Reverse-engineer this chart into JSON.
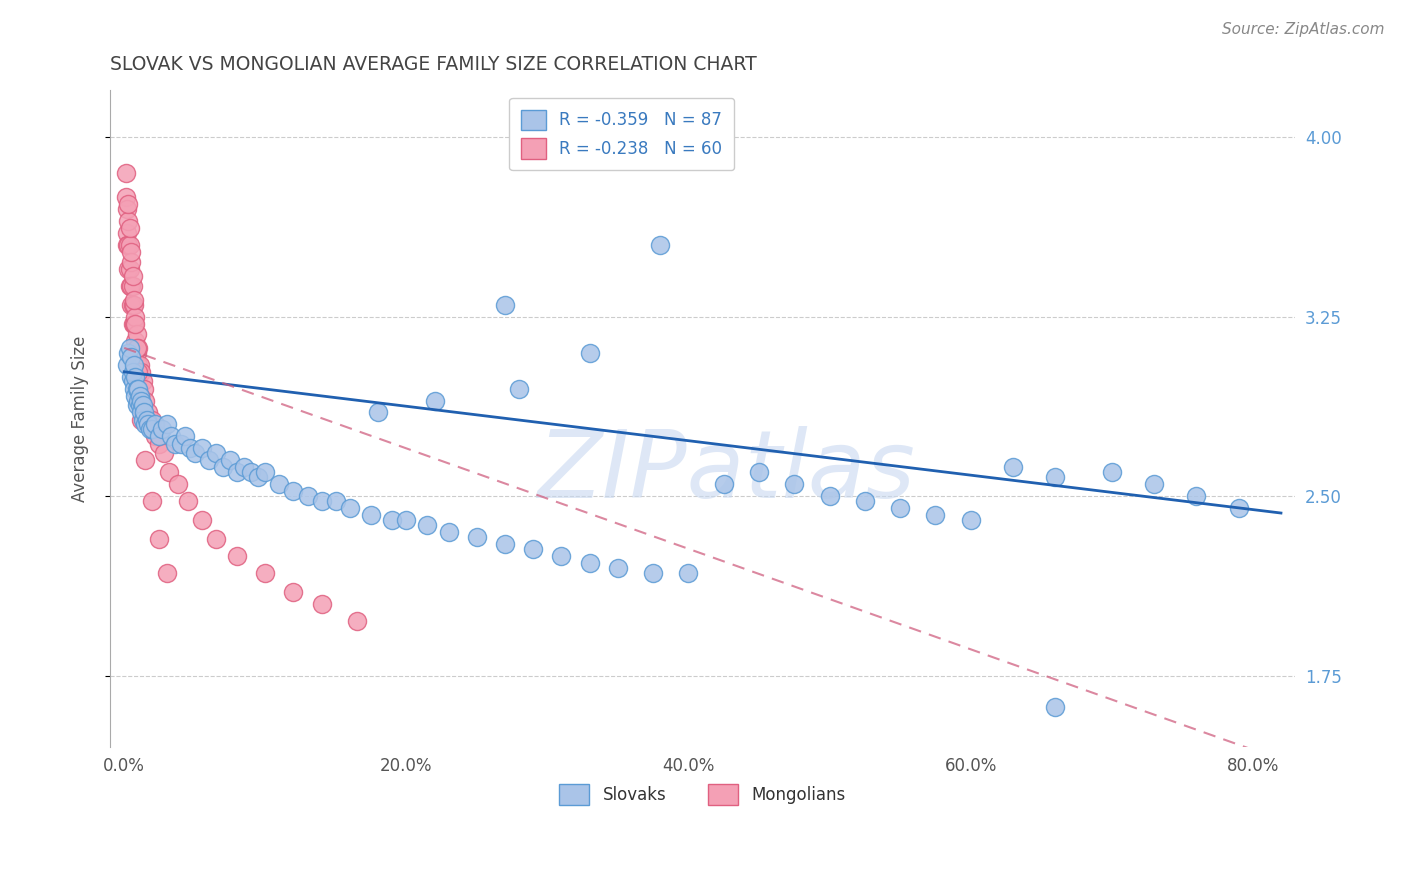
{
  "title": "SLOVAK VS MONGOLIAN AVERAGE FAMILY SIZE CORRELATION CHART",
  "source_text": "Source: ZipAtlas.com",
  "ylabel": "Average Family Size",
  "xlabel_ticks": [
    "0.0%",
    "20.0%",
    "40.0%",
    "60.0%",
    "80.0%"
  ],
  "xlabel_vals": [
    0.0,
    0.2,
    0.4,
    0.6,
    0.8
  ],
  "yticks": [
    1.75,
    2.5,
    3.25,
    4.0
  ],
  "xlim": [
    -0.01,
    0.83
  ],
  "ylim": [
    1.45,
    4.2
  ],
  "slovak_color": "#aac4e8",
  "mongolian_color": "#f4a0b5",
  "slovak_edge_color": "#5b9bd5",
  "mongolian_edge_color": "#e06080",
  "trend_slovak_color": "#2060b0",
  "trend_mongolian_color": "#d06080",
  "watermark": "ZIPatlas",
  "watermark_color": "#c8d8f0",
  "title_color": "#444444",
  "right_tick_color": "#5b9bd5",
  "grid_color": "#cccccc",
  "slovak_intercept": 3.02,
  "slovak_slope": -0.72,
  "mongolian_intercept": 3.12,
  "mongolian_slope": -2.1,
  "slovak_x": [
    0.002,
    0.003,
    0.004,
    0.005,
    0.005,
    0.006,
    0.006,
    0.007,
    0.007,
    0.008,
    0.008,
    0.009,
    0.009,
    0.01,
    0.01,
    0.011,
    0.011,
    0.012,
    0.012,
    0.013,
    0.013,
    0.014,
    0.015,
    0.016,
    0.017,
    0.018,
    0.02,
    0.022,
    0.025,
    0.027,
    0.03,
    0.033,
    0.036,
    0.04,
    0.043,
    0.047,
    0.05,
    0.055,
    0.06,
    0.065,
    0.07,
    0.075,
    0.08,
    0.085,
    0.09,
    0.095,
    0.1,
    0.11,
    0.12,
    0.13,
    0.14,
    0.15,
    0.16,
    0.175,
    0.19,
    0.2,
    0.215,
    0.23,
    0.25,
    0.27,
    0.29,
    0.31,
    0.33,
    0.35,
    0.375,
    0.4,
    0.425,
    0.45,
    0.475,
    0.5,
    0.525,
    0.55,
    0.575,
    0.6,
    0.63,
    0.66,
    0.7,
    0.73,
    0.76,
    0.79,
    0.27,
    0.33,
    0.38,
    0.28,
    0.22,
    0.18,
    0.66
  ],
  "slovak_y": [
    3.05,
    3.1,
    3.12,
    3.08,
    3.0,
    2.98,
    3.02,
    3.05,
    2.95,
    3.0,
    2.92,
    2.95,
    2.88,
    2.95,
    2.9,
    2.92,
    2.88,
    2.85,
    2.9,
    2.88,
    2.82,
    2.85,
    2.8,
    2.82,
    2.8,
    2.78,
    2.78,
    2.8,
    2.75,
    2.78,
    2.8,
    2.75,
    2.72,
    2.72,
    2.75,
    2.7,
    2.68,
    2.7,
    2.65,
    2.68,
    2.62,
    2.65,
    2.6,
    2.62,
    2.6,
    2.58,
    2.6,
    2.55,
    2.52,
    2.5,
    2.48,
    2.48,
    2.45,
    2.42,
    2.4,
    2.4,
    2.38,
    2.35,
    2.33,
    2.3,
    2.28,
    2.25,
    2.22,
    2.2,
    2.18,
    2.18,
    2.55,
    2.6,
    2.55,
    2.5,
    2.48,
    2.45,
    2.42,
    2.4,
    2.62,
    2.58,
    2.6,
    2.55,
    2.5,
    2.45,
    3.3,
    3.1,
    3.55,
    2.95,
    2.9,
    2.85,
    1.62
  ],
  "mongolian_x": [
    0.001,
    0.001,
    0.002,
    0.002,
    0.002,
    0.003,
    0.003,
    0.003,
    0.004,
    0.004,
    0.004,
    0.005,
    0.005,
    0.005,
    0.006,
    0.006,
    0.006,
    0.007,
    0.007,
    0.008,
    0.008,
    0.009,
    0.009,
    0.01,
    0.01,
    0.011,
    0.012,
    0.013,
    0.014,
    0.015,
    0.017,
    0.018,
    0.02,
    0.022,
    0.025,
    0.028,
    0.032,
    0.038,
    0.045,
    0.055,
    0.065,
    0.08,
    0.1,
    0.12,
    0.14,
    0.165,
    0.003,
    0.004,
    0.005,
    0.006,
    0.007,
    0.008,
    0.009,
    0.01,
    0.011,
    0.012,
    0.015,
    0.02,
    0.025,
    0.03
  ],
  "mongolian_y": [
    3.85,
    3.75,
    3.7,
    3.6,
    3.55,
    3.65,
    3.55,
    3.45,
    3.55,
    3.45,
    3.38,
    3.48,
    3.38,
    3.3,
    3.38,
    3.3,
    3.22,
    3.3,
    3.22,
    3.25,
    3.15,
    3.18,
    3.1,
    3.12,
    3.05,
    3.05,
    3.02,
    2.98,
    2.95,
    2.9,
    2.85,
    2.8,
    2.82,
    2.75,
    2.72,
    2.68,
    2.6,
    2.55,
    2.48,
    2.4,
    2.32,
    2.25,
    2.18,
    2.1,
    2.05,
    1.98,
    3.72,
    3.62,
    3.52,
    3.42,
    3.32,
    3.22,
    3.12,
    3.02,
    2.92,
    2.82,
    2.65,
    2.48,
    2.32,
    2.18
  ]
}
